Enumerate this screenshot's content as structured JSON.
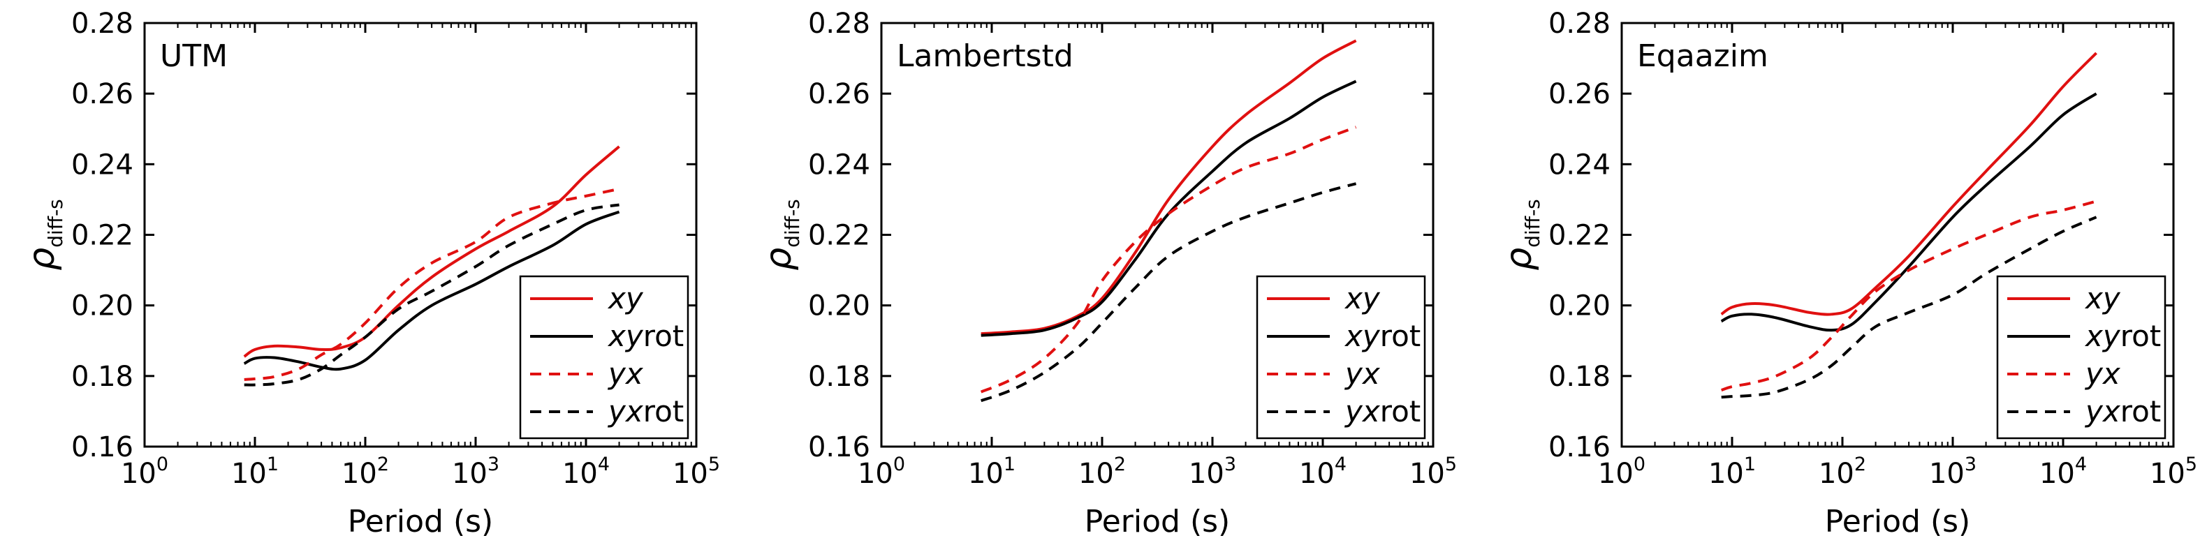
{
  "figure": {
    "xlabel": "Period (s)",
    "ylabel_main": "ρ",
    "ylabel_sub": "diff-s",
    "x_tick_base": "10",
    "x_tick_exponents": [
      "0",
      "1",
      "2",
      "3",
      "4",
      "5"
    ],
    "y_ticks": [
      "0.16",
      "0.18",
      "0.20",
      "0.22",
      "0.24",
      "0.26",
      "0.28"
    ],
    "colors": {
      "red": "#e01010",
      "black": "#000000"
    }
  },
  "chart_data": [
    {
      "type": "line",
      "title": "UTM",
      "xscale": "log",
      "xlim": [
        1,
        100000
      ],
      "ylim": [
        0.16,
        0.28
      ],
      "grid": false,
      "legend_position": "bottom-right",
      "series": [
        {
          "name": "xy",
          "name_italic": "xy",
          "name_plain": "",
          "color": "#e01010",
          "dash": false,
          "x": [
            8,
            10,
            15,
            25,
            40,
            60,
            100,
            200,
            400,
            1000,
            2000,
            5000,
            10000,
            20000
          ],
          "y": [
            0.1855,
            0.1875,
            0.1885,
            0.1882,
            0.1875,
            0.188,
            0.191,
            0.2,
            0.208,
            0.216,
            0.221,
            0.228,
            0.237,
            0.245
          ]
        },
        {
          "name": "xyrot",
          "name_italic": "xy",
          "name_plain": "rot",
          "color": "#000000",
          "dash": false,
          "x": [
            8,
            10,
            15,
            25,
            40,
            60,
            100,
            200,
            400,
            1000,
            2000,
            5000,
            10000,
            20000
          ],
          "y": [
            0.1835,
            0.185,
            0.1852,
            0.184,
            0.1825,
            0.182,
            0.1845,
            0.193,
            0.2,
            0.206,
            0.211,
            0.217,
            0.223,
            0.2265
          ]
        },
        {
          "name": "yx",
          "name_italic": "yx",
          "name_plain": "",
          "color": "#e01010",
          "dash": true,
          "x": [
            8,
            10,
            15,
            25,
            40,
            60,
            100,
            200,
            400,
            1000,
            2000,
            5000,
            10000,
            20000
          ],
          "y": [
            0.179,
            0.1792,
            0.1798,
            0.182,
            0.186,
            0.189,
            0.195,
            0.205,
            0.212,
            0.218,
            0.225,
            0.229,
            0.231,
            0.233
          ]
        },
        {
          "name": "yxrot",
          "name_italic": "yx",
          "name_plain": "rot",
          "color": "#000000",
          "dash": true,
          "x": [
            8,
            10,
            15,
            25,
            40,
            60,
            100,
            200,
            400,
            1000,
            2000,
            5000,
            10000,
            20000
          ],
          "y": [
            0.1775,
            0.1775,
            0.1778,
            0.179,
            0.182,
            0.186,
            0.191,
            0.199,
            0.204,
            0.211,
            0.217,
            0.223,
            0.227,
            0.2285
          ]
        }
      ]
    },
    {
      "type": "line",
      "title": "Lambertstd",
      "xscale": "log",
      "xlim": [
        1,
        100000
      ],
      "ylim": [
        0.16,
        0.28
      ],
      "grid": false,
      "legend_position": "bottom-right",
      "series": [
        {
          "name": "xy",
          "name_italic": "xy",
          "name_plain": "",
          "color": "#e01010",
          "dash": false,
          "x": [
            8,
            15,
            30,
            60,
            100,
            200,
            400,
            1000,
            2000,
            5000,
            10000,
            20000
          ],
          "y": [
            0.192,
            0.1925,
            0.1935,
            0.197,
            0.202,
            0.215,
            0.23,
            0.245,
            0.254,
            0.263,
            0.27,
            0.275
          ]
        },
        {
          "name": "xyrot",
          "name_italic": "xy",
          "name_plain": "rot",
          "color": "#000000",
          "dash": false,
          "x": [
            8,
            15,
            30,
            60,
            100,
            200,
            400,
            1000,
            2000,
            5000,
            10000,
            20000
          ],
          "y": [
            0.1915,
            0.192,
            0.193,
            0.1965,
            0.201,
            0.213,
            0.226,
            0.238,
            0.246,
            0.253,
            0.259,
            0.2635
          ]
        },
        {
          "name": "yx",
          "name_italic": "yx",
          "name_plain": "",
          "color": "#e01010",
          "dash": true,
          "x": [
            8,
            15,
            30,
            60,
            100,
            200,
            400,
            1000,
            2000,
            5000,
            10000,
            20000
          ],
          "y": [
            0.1755,
            0.179,
            0.185,
            0.195,
            0.207,
            0.218,
            0.226,
            0.234,
            0.239,
            0.243,
            0.247,
            0.2505
          ]
        },
        {
          "name": "yxrot",
          "name_italic": "yx",
          "name_plain": "rot",
          "color": "#000000",
          "dash": true,
          "x": [
            8,
            15,
            30,
            60,
            100,
            200,
            400,
            1000,
            2000,
            5000,
            10000,
            20000
          ],
          "y": [
            0.173,
            0.176,
            0.181,
            0.188,
            0.195,
            0.205,
            0.214,
            0.221,
            0.225,
            0.229,
            0.232,
            0.2345
          ]
        }
      ]
    },
    {
      "type": "line",
      "title": "Eqaazim",
      "xscale": "log",
      "xlim": [
        1,
        100000
      ],
      "ylim": [
        0.16,
        0.28
      ],
      "grid": false,
      "legend_position": "bottom-right",
      "series": [
        {
          "name": "xy",
          "name_italic": "xy",
          "name_plain": "",
          "color": "#e01010",
          "dash": false,
          "x": [
            8,
            10,
            15,
            25,
            50,
            80,
            120,
            200,
            400,
            1000,
            2000,
            5000,
            10000,
            20000
          ],
          "y": [
            0.1975,
            0.1995,
            0.2005,
            0.2,
            0.198,
            0.1975,
            0.199,
            0.205,
            0.214,
            0.228,
            0.238,
            0.251,
            0.262,
            0.2715
          ]
        },
        {
          "name": "xyrot",
          "name_italic": "xy",
          "name_plain": "rot",
          "color": "#000000",
          "dash": false,
          "x": [
            8,
            10,
            15,
            25,
            50,
            80,
            120,
            200,
            400,
            1000,
            2000,
            5000,
            10000,
            20000
          ],
          "y": [
            0.1955,
            0.197,
            0.1975,
            0.1965,
            0.194,
            0.193,
            0.1945,
            0.201,
            0.211,
            0.225,
            0.234,
            0.245,
            0.254,
            0.26
          ]
        },
        {
          "name": "yx",
          "name_italic": "yx",
          "name_plain": "",
          "color": "#e01010",
          "dash": true,
          "x": [
            8,
            10,
            15,
            25,
            50,
            80,
            120,
            200,
            400,
            1000,
            2000,
            5000,
            10000,
            20000
          ],
          "y": [
            0.176,
            0.177,
            0.178,
            0.18,
            0.185,
            0.191,
            0.197,
            0.204,
            0.21,
            0.216,
            0.22,
            0.225,
            0.227,
            0.2295
          ]
        },
        {
          "name": "yxrot",
          "name_italic": "yx",
          "name_plain": "rot",
          "color": "#000000",
          "dash": true,
          "x": [
            8,
            10,
            15,
            25,
            50,
            80,
            120,
            200,
            400,
            1000,
            2000,
            5000,
            10000,
            20000
          ],
          "y": [
            0.174,
            0.1742,
            0.1745,
            0.1755,
            0.179,
            0.183,
            0.188,
            0.194,
            0.198,
            0.203,
            0.209,
            0.216,
            0.221,
            0.225
          ]
        }
      ]
    }
  ]
}
